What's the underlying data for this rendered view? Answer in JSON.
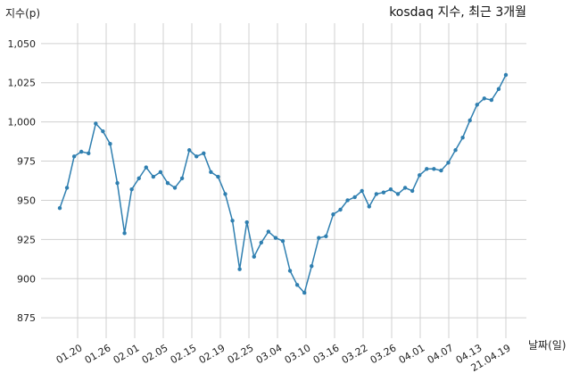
{
  "chart_data": {
    "type": "line",
    "title": "kosdaq 지수, 최근 3개월",
    "ylabel": "지수(p)",
    "xlabel": "날짜(일)",
    "ylim": [
      862,
      1063
    ],
    "yticks": [
      875,
      900,
      925,
      950,
      975,
      1000,
      1025,
      1050
    ],
    "yticklabels": [
      "875",
      "900",
      "925",
      "950",
      "975",
      "1,000",
      "1,025",
      "1,050"
    ],
    "xticklabels": [
      "01.20",
      "01.26",
      "02.01",
      "02.05",
      "02.15",
      "02.19",
      "02.25",
      "03.04",
      "03.10",
      "03.16",
      "03.22",
      "03.26",
      "04.01",
      "04.07",
      "04.13",
      "21.04.19"
    ],
    "grid": true,
    "colors": {
      "line": "#2f7fb0",
      "grid": "#d0d0d0"
    },
    "series": [
      {
        "values": [
          945,
          958,
          978,
          981,
          980,
          999,
          994,
          986,
          961,
          929,
          957,
          964,
          971,
          965,
          968,
          961,
          958,
          964,
          982,
          978,
          980,
          968,
          965,
          954,
          937,
          906,
          936,
          914,
          923,
          930,
          926,
          924,
          905,
          896,
          891,
          908,
          926,
          927,
          941,
          944,
          950,
          952,
          956,
          946,
          954,
          955,
          957,
          954,
          958,
          956,
          966,
          970,
          970,
          969,
          974,
          982,
          990,
          1001,
          1011,
          1015,
          1014,
          1021,
          1030
        ]
      }
    ]
  }
}
